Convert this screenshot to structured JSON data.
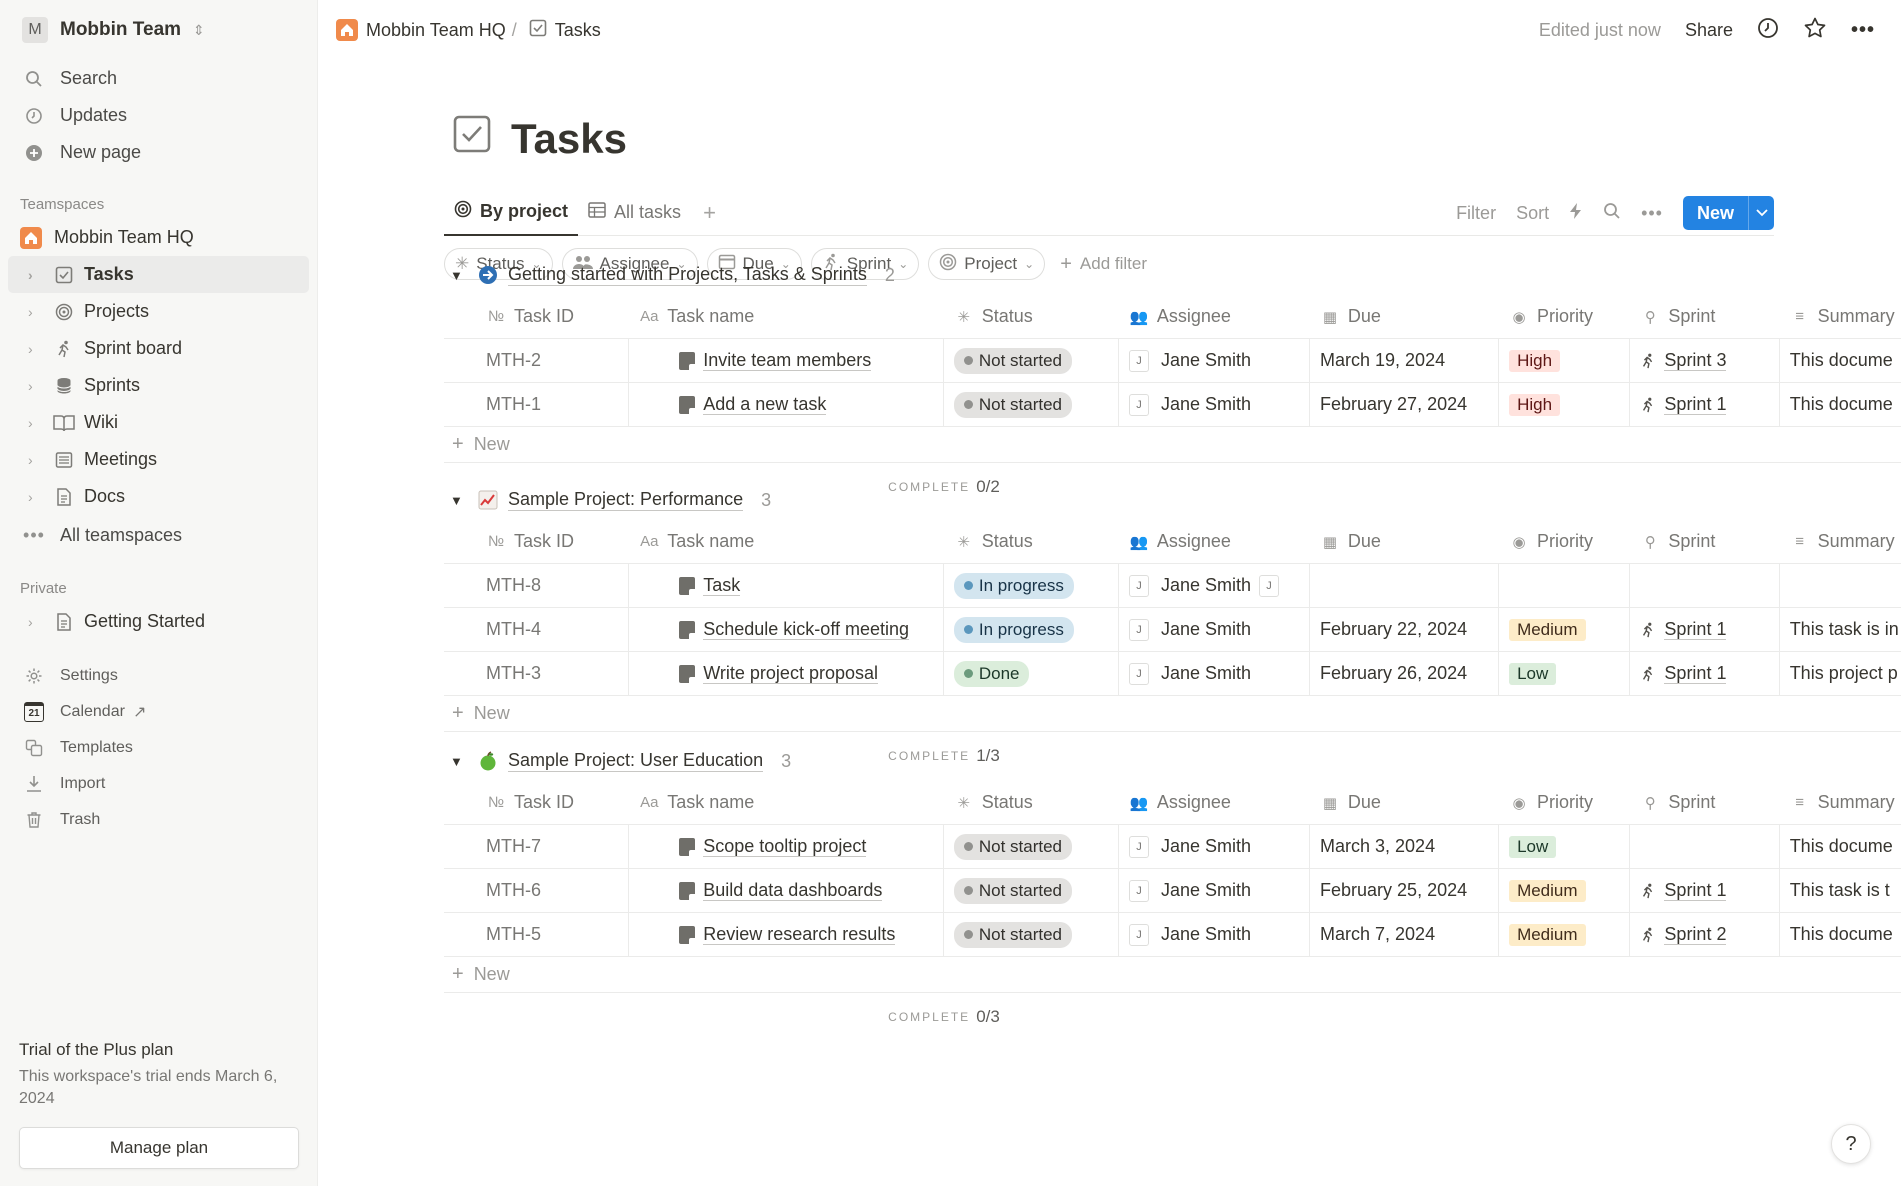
{
  "workspace": {
    "avatar": "M",
    "name": "Mobbin Team"
  },
  "sidebar": {
    "top": [
      {
        "label": "Search",
        "icon": "search-icon"
      },
      {
        "label": "Updates",
        "icon": "clock-icon"
      },
      {
        "label": "New page",
        "icon": "plus-circle-icon"
      }
    ],
    "teamspaces_label": "Teamspaces",
    "teamspace_name": "Mobbin Team HQ",
    "tree": [
      {
        "label": "Tasks",
        "icon": "checkbox-icon",
        "active": true
      },
      {
        "label": "Projects",
        "icon": "target-icon"
      },
      {
        "label": "Sprint board",
        "icon": "runner-icon"
      },
      {
        "label": "Sprints",
        "icon": "database-icon"
      },
      {
        "label": "Wiki",
        "icon": "book-icon"
      },
      {
        "label": "Meetings",
        "icon": "list-icon"
      },
      {
        "label": "Docs",
        "icon": "document-icon"
      }
    ],
    "all_teamspaces": "All teamspaces",
    "private_label": "Private",
    "private_items": [
      {
        "label": "Getting Started"
      }
    ],
    "bottom": [
      {
        "label": "Settings"
      },
      {
        "label": "Calendar"
      },
      {
        "label": "Templates"
      },
      {
        "label": "Import"
      },
      {
        "label": "Trash"
      }
    ],
    "calendar_day": "21",
    "trial_title": "Trial of the Plus plan",
    "trial_text": "This workspace's trial ends March 6, 2024",
    "manage_plan": "Manage plan"
  },
  "topbar": {
    "crumb_home": "Mobbin Team HQ",
    "crumb_sep": "/",
    "crumb_page": "Tasks",
    "edited": "Edited just now",
    "share": "Share"
  },
  "page": {
    "title": "Tasks",
    "views": [
      {
        "label": "By project"
      },
      {
        "label": "All tasks"
      }
    ],
    "tools": {
      "filter": "Filter",
      "sort": "Sort",
      "new": "New"
    },
    "filters": [
      "Status",
      "Assignee",
      "Due",
      "Sprint",
      "Project"
    ],
    "add_filter": "Add filter"
  },
  "columns": {
    "id": "Task ID",
    "name": "Task name",
    "status": "Status",
    "assignee": "Assignee",
    "due": "Due",
    "priority": "Priority",
    "sprint": "Sprint",
    "summary": "Summary",
    "id_prefix": "№",
    "name_prefix": "Aa"
  },
  "complete_label": "COMPLETE",
  "new_row_label": "New",
  "groups": [
    {
      "name": "Getting started with Projects, Tasks & Sprints",
      "icon": "arrow-circle-icon",
      "count": "2",
      "complete": "0/2",
      "rows": [
        {
          "id": "MTH-2",
          "name": "Invite team members",
          "status": "Not started",
          "status_kind": "not",
          "avatar": "J",
          "assignee": "Jane Smith",
          "extra_avatar": "",
          "due": "March 19, 2024",
          "priority": "High",
          "priority_kind": "high",
          "sprint": "Sprint 3",
          "summary": "This docume"
        },
        {
          "id": "MTH-1",
          "name": "Add a new task",
          "status": "Not started",
          "status_kind": "not",
          "avatar": "J",
          "assignee": "Jane Smith",
          "extra_avatar": "",
          "due": "February 27, 2024",
          "priority": "High",
          "priority_kind": "high",
          "sprint": "Sprint 1",
          "summary": "This docume"
        }
      ]
    },
    {
      "name": "Sample Project: Performance",
      "icon": "chart-up-icon",
      "count": "3",
      "complete": "1/3",
      "rows": [
        {
          "id": "MTH-8",
          "name": "Task",
          "status": "In progress",
          "status_kind": "prog",
          "avatar": "J",
          "assignee": "Jane Smith",
          "extra_avatar": "J",
          "due": "",
          "priority": "",
          "priority_kind": "",
          "sprint": "",
          "summary": ""
        },
        {
          "id": "MTH-4",
          "name": "Schedule kick-off meeting",
          "status": "In progress",
          "status_kind": "prog",
          "avatar": "J",
          "assignee": "Jane Smith",
          "extra_avatar": "",
          "due": "February 22, 2024",
          "priority": "Medium",
          "priority_kind": "med",
          "sprint": "Sprint 1",
          "summary": "This task is in"
        },
        {
          "id": "MTH-3",
          "name": "Write project proposal",
          "status": "Done",
          "status_kind": "done",
          "avatar": "J",
          "assignee": "Jane Smith",
          "extra_avatar": "",
          "due": "February 26, 2024",
          "priority": "Low",
          "priority_kind": "low",
          "sprint": "Sprint 1",
          "summary": "This project p"
        }
      ]
    },
    {
      "name": "Sample Project: User Education",
      "icon": "apple-icon",
      "count": "3",
      "complete": "0/3",
      "rows": [
        {
          "id": "MTH-7",
          "name": "Scope tooltip project",
          "status": "Not started",
          "status_kind": "not",
          "avatar": "J",
          "assignee": "Jane Smith",
          "extra_avatar": "",
          "due": "March 3, 2024",
          "priority": "Low",
          "priority_kind": "low",
          "sprint": "",
          "summary": "This docume"
        },
        {
          "id": "MTH-6",
          "name": "Build data dashboards",
          "status": "Not started",
          "status_kind": "not",
          "avatar": "J",
          "assignee": "Jane Smith",
          "extra_avatar": "",
          "due": "February 25, 2024",
          "priority": "Medium",
          "priority_kind": "med",
          "sprint": "Sprint 1",
          "summary": "This task is t"
        },
        {
          "id": "MTH-5",
          "name": "Review research results",
          "status": "Not started",
          "status_kind": "not",
          "avatar": "J",
          "assignee": "Jane Smith",
          "extra_avatar": "",
          "due": "March 7, 2024",
          "priority": "Medium",
          "priority_kind": "med",
          "sprint": "Sprint 2",
          "summary": "This docume"
        }
      ]
    }
  ],
  "help": "?",
  "colors": {
    "accent": "#2383e2",
    "sidebar_bg": "#f7f7f5",
    "teamspace_icon": "#f08a4b"
  }
}
